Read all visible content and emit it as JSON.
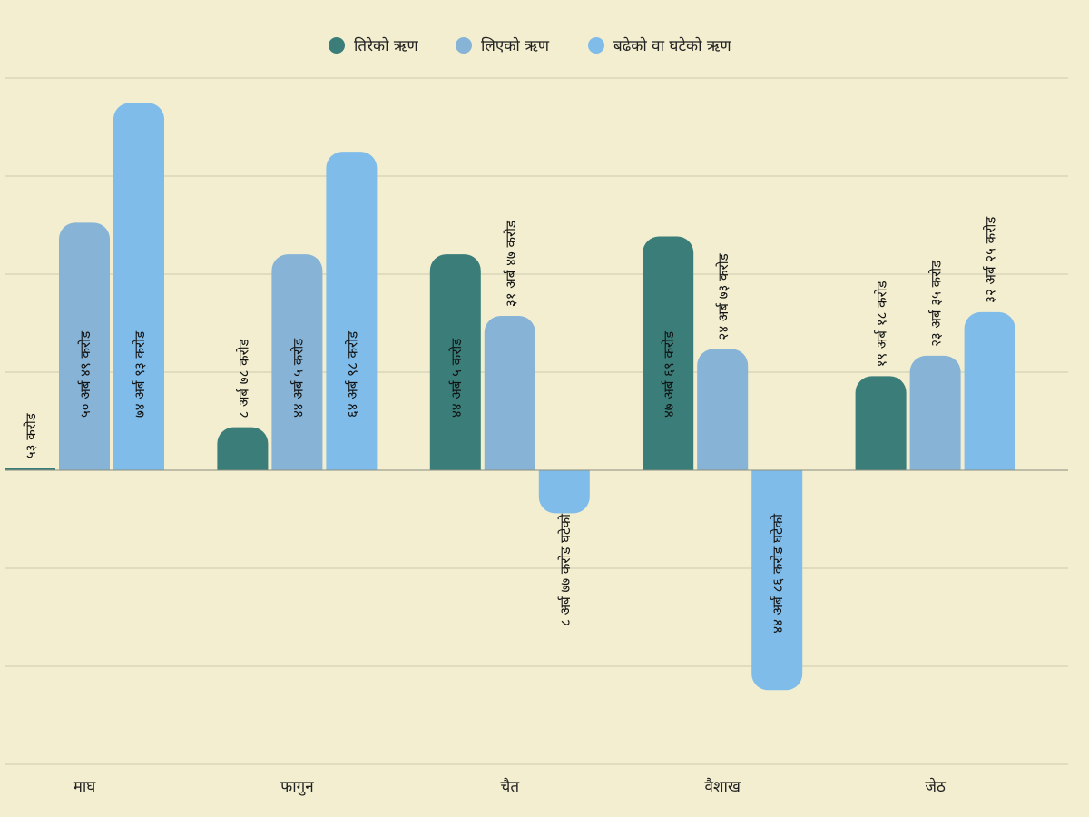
{
  "chart_data": {
    "type": "bar",
    "title": "",
    "xlabel": "",
    "ylabel": "",
    "ylim": [
      -60,
      100
    ],
    "grid": true,
    "legend_position": "top-center",
    "categories": [
      "माघ",
      "फागुन",
      "चैत",
      "वैशाख",
      "जेठ"
    ],
    "series": [
      {
        "name": "तिरेको ऋण",
        "color": "#3a7d79",
        "values": [
          0.53,
          8.78,
          44.05,
          47.69,
          19.18
        ],
        "labels": [
          "५३ करोड",
          "८ अर्ब ७८ करोड",
          "४४ अर्ब ५ करोड",
          "४७ अर्ब ६९ करोड",
          "१९ अर्ब १८ करोड"
        ]
      },
      {
        "name": "लिएको ऋण",
        "color": "#86b3d6",
        "values": [
          50.49,
          44.05,
          31.47,
          24.73,
          23.35
        ],
        "labels": [
          "५० अर्ब ४९ करोड",
          "४४ अर्ब ५ करोड",
          "३१ अर्ब ४७ करोड",
          "२४ अर्ब ७३ करोड",
          "२३ अर्ब ३५ करोड"
        ]
      },
      {
        "name": "बढेको वा घटेको ऋण",
        "color": "#7fbce9",
        "values": [
          74.93,
          64.98,
          -8.77,
          -44.86,
          32.25
        ],
        "labels": [
          "७४ अर्ब ९३ करोड",
          "६४ अर्ब ९८ करोड",
          "८ अर्ब ७७ करोड घटेको",
          "४४ अर्ब ८६ करोड घटेको",
          "३२ अर्ब २५ करोड"
        ]
      }
    ]
  }
}
